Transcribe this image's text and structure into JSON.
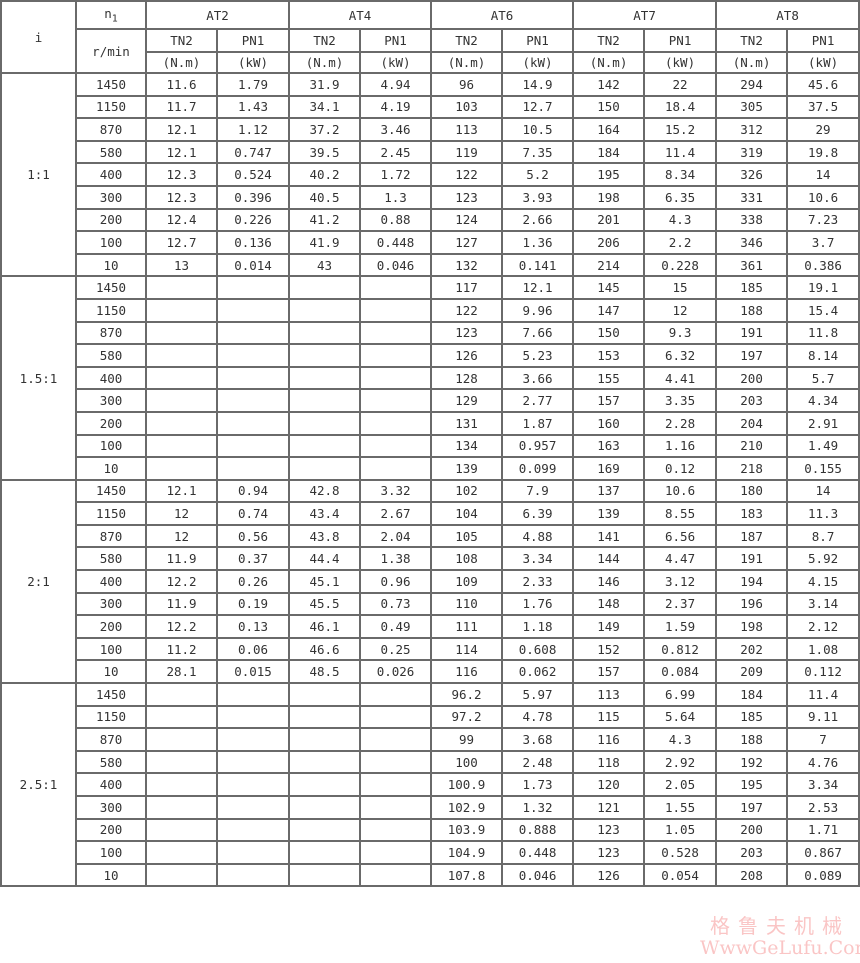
{
  "header": {
    "i_label": "i",
    "n1_label": "n",
    "n1_sub": "1",
    "n1_unit": "r/min",
    "models": [
      "AT2",
      "AT4",
      "AT6",
      "AT7",
      "AT8"
    ],
    "tn2_label": "TN2",
    "pn1_label": "PN1",
    "tn2_unit": "(N.m)",
    "pn1_unit": "(kW)"
  },
  "groups": [
    {
      "ratio": "1:1",
      "rows": [
        [
          "1450",
          "11.6",
          "1.79",
          "31.9",
          "4.94",
          "96",
          "14.9",
          "142",
          "22",
          "294",
          "45.6"
        ],
        [
          "1150",
          "11.7",
          "1.43",
          "34.1",
          "4.19",
          "103",
          "12.7",
          "150",
          "18.4",
          "305",
          "37.5"
        ],
        [
          "870",
          "12.1",
          "1.12",
          "37.2",
          "3.46",
          "113",
          "10.5",
          "164",
          "15.2",
          "312",
          "29"
        ],
        [
          "580",
          "12.1",
          "0.747",
          "39.5",
          "2.45",
          "119",
          "7.35",
          "184",
          "11.4",
          "319",
          "19.8"
        ],
        [
          "400",
          "12.3",
          "0.524",
          "40.2",
          "1.72",
          "122",
          "5.2",
          "195",
          "8.34",
          "326",
          "14"
        ],
        [
          "300",
          "12.3",
          "0.396",
          "40.5",
          "1.3",
          "123",
          "3.93",
          "198",
          "6.35",
          "331",
          "10.6"
        ],
        [
          "200",
          "12.4",
          "0.226",
          "41.2",
          "0.88",
          "124",
          "2.66",
          "201",
          "4.3",
          "338",
          "7.23"
        ],
        [
          "100",
          "12.7",
          "0.136",
          "41.9",
          "0.448",
          "127",
          "1.36",
          "206",
          "2.2",
          "346",
          "3.7"
        ],
        [
          "10",
          "13",
          "0.014",
          "43",
          "0.046",
          "132",
          "0.141",
          "214",
          "0.228",
          "361",
          "0.386"
        ]
      ]
    },
    {
      "ratio": "1.5:1",
      "rows": [
        [
          "1450",
          "",
          "",
          "",
          "",
          "117",
          "12.1",
          "145",
          "15",
          "185",
          "19.1"
        ],
        [
          "1150",
          "",
          "",
          "",
          "",
          "122",
          "9.96",
          "147",
          "12",
          "188",
          "15.4"
        ],
        [
          "870",
          "",
          "",
          "",
          "",
          "123",
          "7.66",
          "150",
          "9.3",
          "191",
          "11.8"
        ],
        [
          "580",
          "",
          "",
          "",
          "",
          "126",
          "5.23",
          "153",
          "6.32",
          "197",
          "8.14"
        ],
        [
          "400",
          "",
          "",
          "",
          "",
          "128",
          "3.66",
          "155",
          "4.41",
          "200",
          "5.7"
        ],
        [
          "300",
          "",
          "",
          "",
          "",
          "129",
          "2.77",
          "157",
          "3.35",
          "203",
          "4.34"
        ],
        [
          "200",
          "",
          "",
          "",
          "",
          "131",
          "1.87",
          "160",
          "2.28",
          "204",
          "2.91"
        ],
        [
          "100",
          "",
          "",
          "",
          "",
          "134",
          "0.957",
          "163",
          "1.16",
          "210",
          "1.49"
        ],
        [
          "10",
          "",
          "",
          "",
          "",
          "139",
          "0.099",
          "169",
          "0.12",
          "218",
          "0.155"
        ]
      ]
    },
    {
      "ratio": "2:1",
      "rows": [
        [
          "1450",
          "12.1",
          "0.94",
          "42.8",
          "3.32",
          "102",
          "7.9",
          "137",
          "10.6",
          "180",
          "14"
        ],
        [
          "1150",
          "12",
          "0.74",
          "43.4",
          "2.67",
          "104",
          "6.39",
          "139",
          "8.55",
          "183",
          "11.3"
        ],
        [
          "870",
          "12",
          "0.56",
          "43.8",
          "2.04",
          "105",
          "4.88",
          "141",
          "6.56",
          "187",
          "8.7"
        ],
        [
          "580",
          "11.9",
          "0.37",
          "44.4",
          "1.38",
          "108",
          "3.34",
          "144",
          "4.47",
          "191",
          "5.92"
        ],
        [
          "400",
          "12.2",
          "0.26",
          "45.1",
          "0.96",
          "109",
          "2.33",
          "146",
          "3.12",
          "194",
          "4.15"
        ],
        [
          "300",
          "11.9",
          "0.19",
          "45.5",
          "0.73",
          "110",
          "1.76",
          "148",
          "2.37",
          "196",
          "3.14"
        ],
        [
          "200",
          "12.2",
          "0.13",
          "46.1",
          "0.49",
          "111",
          "1.18",
          "149",
          "1.59",
          "198",
          "2.12"
        ],
        [
          "100",
          "11.2",
          "0.06",
          "46.6",
          "0.25",
          "114",
          "0.608",
          "152",
          "0.812",
          "202",
          "1.08"
        ],
        [
          "10",
          "28.1",
          "0.015",
          "48.5",
          "0.026",
          "116",
          "0.062",
          "157",
          "0.084",
          "209",
          "0.112"
        ]
      ]
    },
    {
      "ratio": "2.5:1",
      "rows": [
        [
          "1450",
          "",
          "",
          "",
          "",
          "96.2",
          "5.97",
          "113",
          "6.99",
          "184",
          "11.4"
        ],
        [
          "1150",
          "",
          "",
          "",
          "",
          "97.2",
          "4.78",
          "115",
          "5.64",
          "185",
          "9.11"
        ],
        [
          "870",
          "",
          "",
          "",
          "",
          "99",
          "3.68",
          "116",
          "4.3",
          "188",
          "7"
        ],
        [
          "580",
          "",
          "",
          "",
          "",
          "100",
          "2.48",
          "118",
          "2.92",
          "192",
          "4.76"
        ],
        [
          "400",
          "",
          "",
          "",
          "",
          "100.9",
          "1.73",
          "120",
          "2.05",
          "195",
          "3.34"
        ],
        [
          "300",
          "",
          "",
          "",
          "",
          "102.9",
          "1.32",
          "121",
          "1.55",
          "197",
          "2.53"
        ],
        [
          "200",
          "",
          "",
          "",
          "",
          "103.9",
          "0.888",
          "123",
          "1.05",
          "200",
          "1.71"
        ],
        [
          "100",
          "",
          "",
          "",
          "",
          "104.9",
          "0.448",
          "123",
          "0.528",
          "203",
          "0.867"
        ],
        [
          "10",
          "",
          "",
          "",
          "",
          "107.8",
          "0.046",
          "126",
          "0.054",
          "208",
          "0.089"
        ]
      ]
    }
  ],
  "watermark": {
    "cn": "格鲁夫机械",
    "en": "WwwGeLufu.Com"
  }
}
